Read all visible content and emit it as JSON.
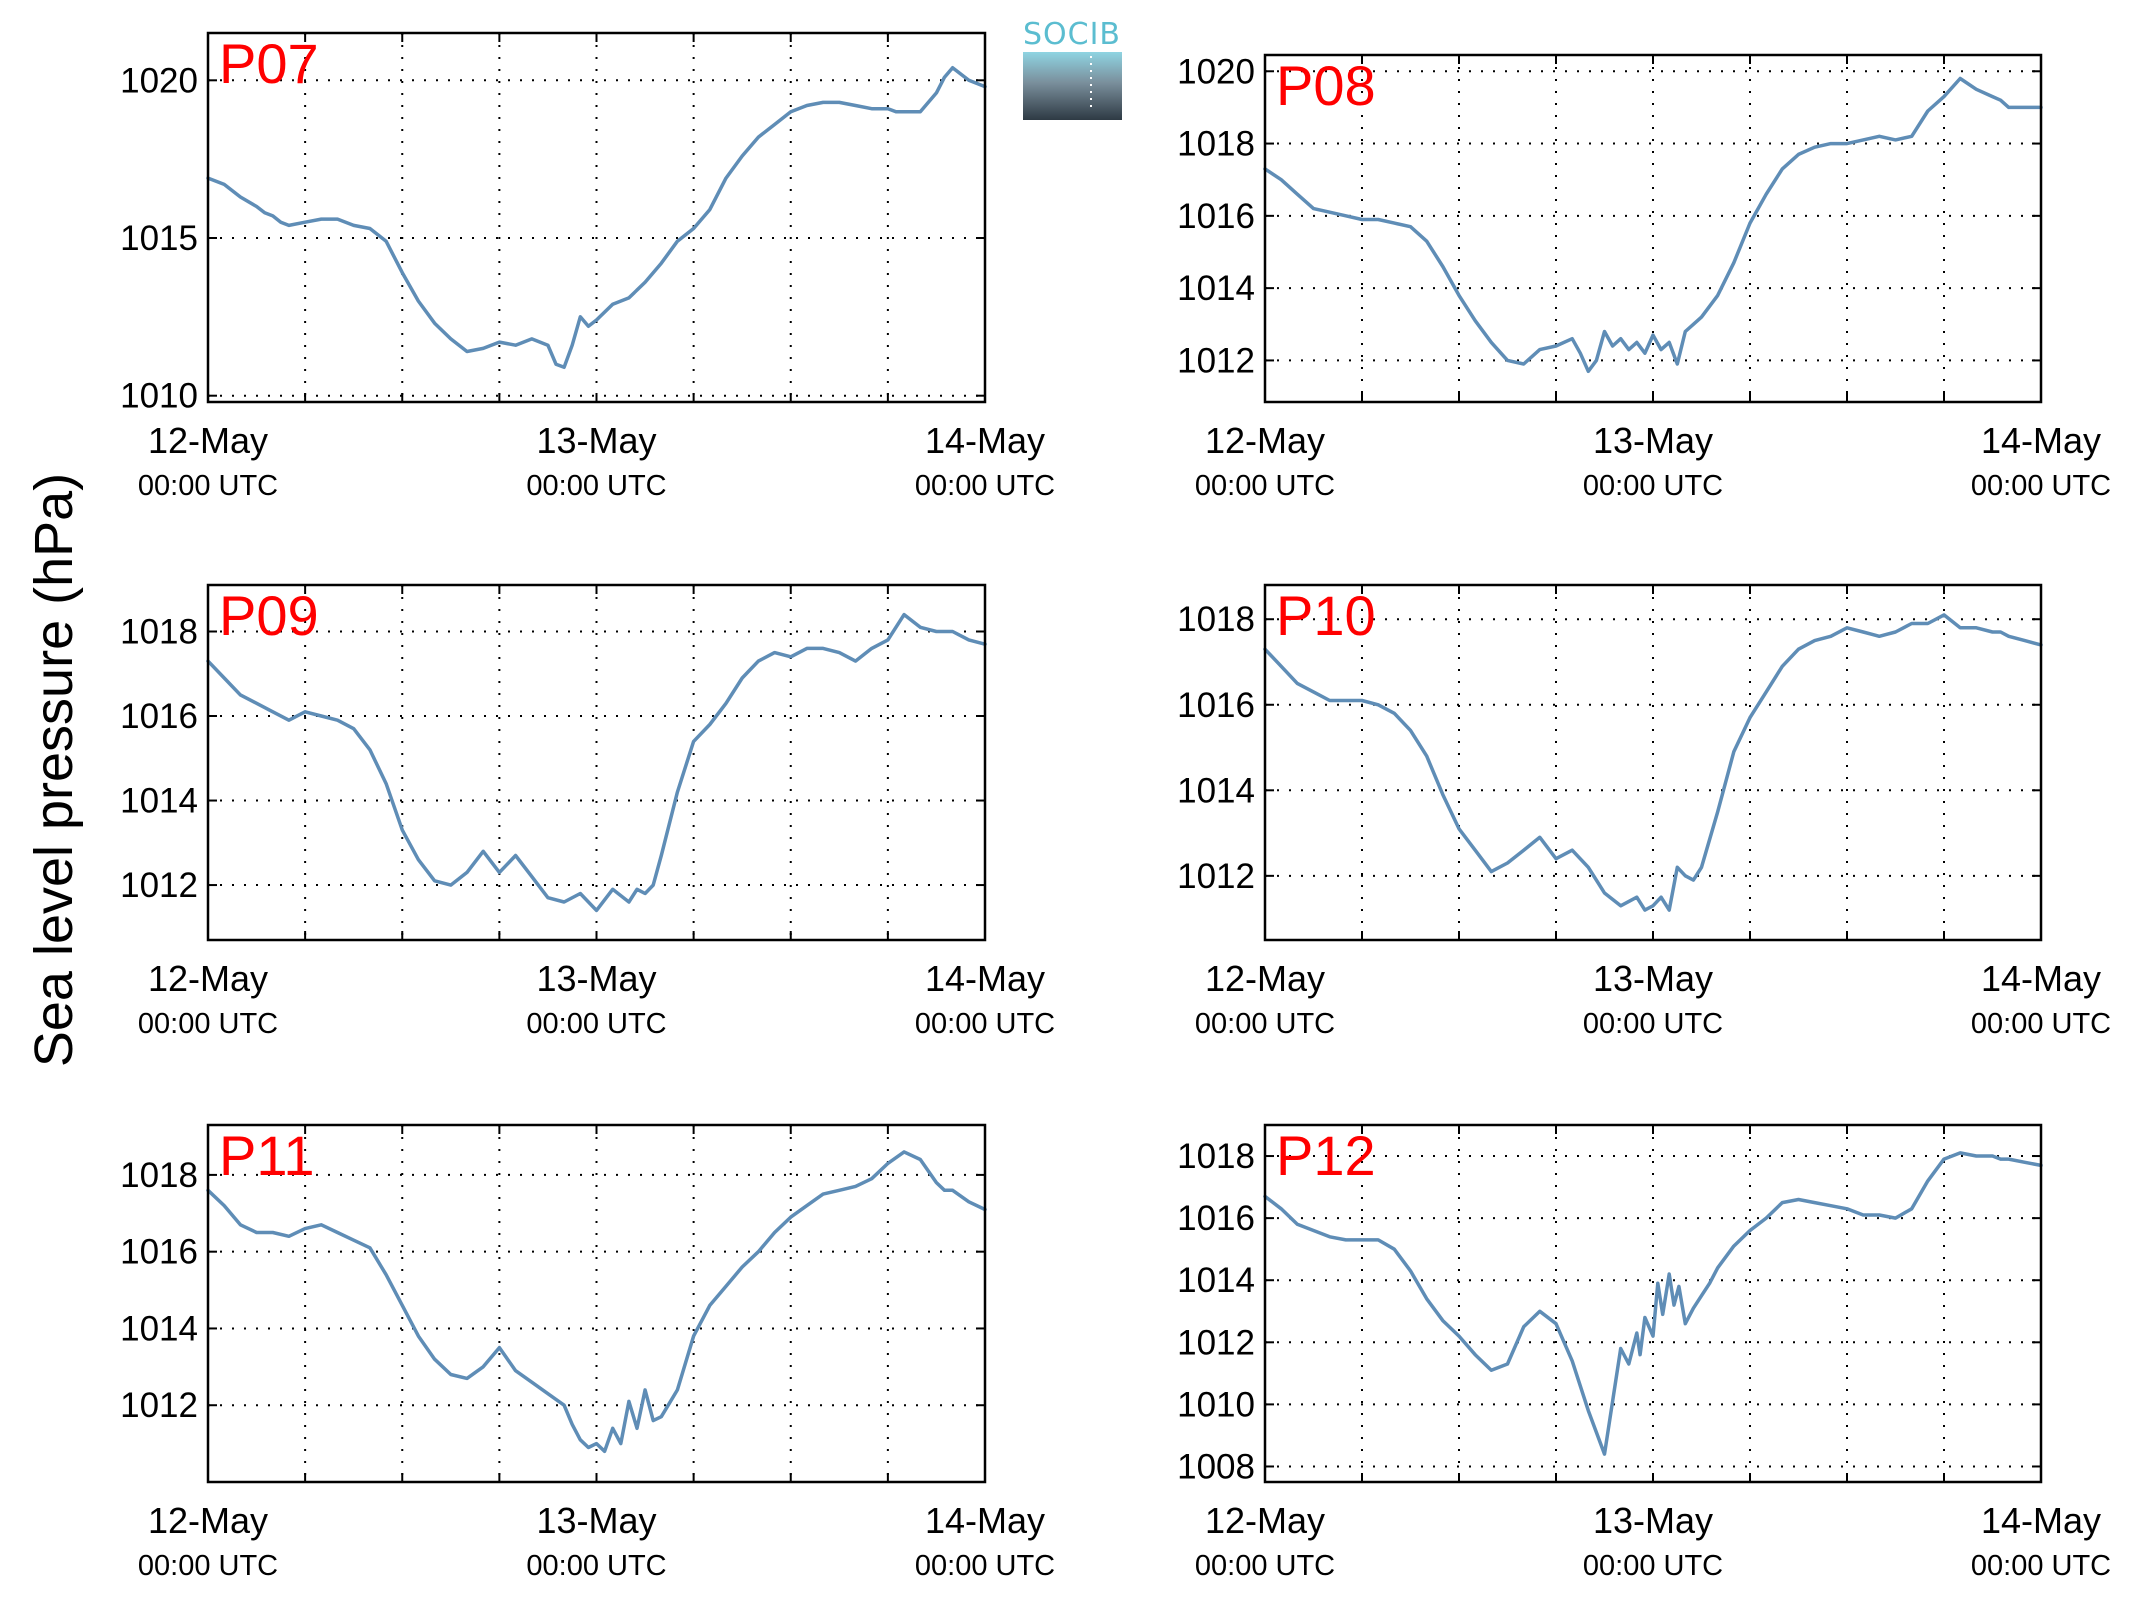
{
  "figure": {
    "ylabel": "Sea level pressure (hPa)",
    "logo_text": "SOCIB",
    "colors": {
      "line": "#5f8db6",
      "panel_label": "#ff0000",
      "axis": "#000000",
      "logo_top": "#5bbdd0",
      "logo_bottom": "#2e3a44"
    }
  },
  "chart_data": [
    {
      "type": "line",
      "label": "P07",
      "x_ticks": [
        "12-May",
        "13-May",
        "14-May"
      ],
      "x_tick_sublabel": "00:00 UTC",
      "x_unit": "hours since 12-May 00:00 UTC",
      "xlim": [
        0,
        48
      ],
      "ylim": [
        1009.8,
        1021.5
      ],
      "yticks": [
        1010,
        1015,
        1020
      ],
      "grid": true,
      "series": [
        {
          "x": [
            0,
            1,
            2,
            3,
            3.5,
            4,
            4.5,
            5,
            6,
            7,
            8,
            9,
            10,
            11,
            12,
            13,
            14,
            15,
            16,
            17,
            17.5,
            18,
            19,
            20,
            21,
            21.5,
            22,
            22.5,
            23,
            23.5,
            24,
            25,
            26,
            27,
            28,
            29,
            30,
            31,
            32,
            33,
            34,
            35,
            36,
            37,
            38,
            39,
            40,
            41,
            42,
            42.5,
            43,
            44,
            45,
            45.5,
            46,
            47,
            48
          ],
          "y": [
            1016.9,
            1016.7,
            1016.3,
            1016.0,
            1015.8,
            1015.7,
            1015.5,
            1015.4,
            1015.5,
            1015.6,
            1015.6,
            1015.4,
            1015.3,
            1014.9,
            1013.9,
            1013.0,
            1012.3,
            1011.8,
            1011.4,
            1011.5,
            1011.6,
            1011.7,
            1011.6,
            1011.8,
            1011.6,
            1011.0,
            1010.9,
            1011.6,
            1012.5,
            1012.2,
            1012.4,
            1012.9,
            1013.1,
            1013.6,
            1014.2,
            1014.9,
            1015.3,
            1015.9,
            1016.9,
            1017.6,
            1018.2,
            1018.6,
            1019.0,
            1019.2,
            1019.3,
            1019.3,
            1019.2,
            1019.1,
            1019.1,
            1019.0,
            1019.0,
            1019.0,
            1019.6,
            1020.1,
            1020.4,
            1020.0,
            1019.8
          ]
        }
      ]
    },
    {
      "type": "line",
      "label": "P08",
      "x_ticks": [
        "12-May",
        "13-May",
        "14-May"
      ],
      "x_tick_sublabel": "00:00 UTC",
      "x_unit": "hours since 12-May 00:00 UTC",
      "xlim": [
        0,
        48
      ],
      "ylim": [
        1010.85,
        1020.45
      ],
      "yticks": [
        1012,
        1014,
        1016,
        1018,
        1020
      ],
      "grid": true,
      "series": [
        {
          "x": [
            0,
            1,
            2,
            3,
            4,
            5,
            6,
            7,
            8,
            9,
            10,
            11,
            12,
            13,
            14,
            15,
            16,
            17,
            18,
            19,
            19.5,
            20,
            20.5,
            21,
            21.5,
            22,
            22.5,
            23,
            23.5,
            24,
            24.5,
            25,
            25.5,
            26,
            26.5,
            27,
            28,
            29,
            30,
            31,
            32,
            33,
            34,
            35,
            36,
            37,
            38,
            39,
            40,
            41,
            42,
            43,
            44,
            45,
            45.5,
            46,
            47,
            48
          ],
          "y": [
            1017.3,
            1017.0,
            1016.6,
            1016.2,
            1016.1,
            1016.0,
            1015.9,
            1015.9,
            1015.8,
            1015.7,
            1015.3,
            1014.6,
            1013.8,
            1013.1,
            1012.5,
            1012.0,
            1011.9,
            1012.3,
            1012.4,
            1012.6,
            1012.2,
            1011.7,
            1012.0,
            1012.8,
            1012.4,
            1012.6,
            1012.3,
            1012.5,
            1012.2,
            1012.7,
            1012.3,
            1012.5,
            1011.9,
            1012.8,
            1013.0,
            1013.2,
            1013.8,
            1014.7,
            1015.8,
            1016.6,
            1017.3,
            1017.7,
            1017.9,
            1018.0,
            1018.0,
            1018.1,
            1018.2,
            1018.1,
            1018.2,
            1018.9,
            1019.3,
            1019.8,
            1019.5,
            1019.3,
            1019.2,
            1019.0,
            1019.0,
            1019.0
          ]
        }
      ]
    },
    {
      "type": "line",
      "label": "P09",
      "x_ticks": [
        "12-May",
        "13-May",
        "14-May"
      ],
      "x_tick_sublabel": "00:00 UTC",
      "x_unit": "hours since 12-May 00:00 UTC",
      "xlim": [
        0,
        48
      ],
      "ylim": [
        1010.7,
        1019.1
      ],
      "yticks": [
        1012,
        1014,
        1016,
        1018
      ],
      "grid": true,
      "series": [
        {
          "x": [
            0,
            1,
            2,
            3,
            4,
            5,
            6,
            7,
            8,
            9,
            10,
            11,
            12,
            13,
            14,
            15,
            16,
            17,
            18,
            19,
            20,
            21,
            22,
            23,
            24,
            25,
            26,
            26.5,
            27,
            27.5,
            28,
            29,
            30,
            31,
            32,
            33,
            34,
            35,
            36,
            37,
            38,
            39,
            40,
            41,
            42,
            43,
            44,
            45,
            45.5,
            46,
            47,
            48
          ],
          "y": [
            1017.3,
            1016.9,
            1016.5,
            1016.3,
            1016.1,
            1015.9,
            1016.1,
            1016.0,
            1015.9,
            1015.7,
            1015.2,
            1014.4,
            1013.3,
            1012.6,
            1012.1,
            1012.0,
            1012.3,
            1012.8,
            1012.3,
            1012.7,
            1012.2,
            1011.7,
            1011.6,
            1011.8,
            1011.4,
            1011.9,
            1011.6,
            1011.9,
            1011.8,
            1012.0,
            1012.7,
            1014.2,
            1015.4,
            1015.8,
            1016.3,
            1016.9,
            1017.3,
            1017.5,
            1017.4,
            1017.6,
            1017.6,
            1017.5,
            1017.3,
            1017.6,
            1017.8,
            1018.4,
            1018.1,
            1018.0,
            1018.0,
            1018.0,
            1017.8,
            1017.7
          ]
        }
      ]
    },
    {
      "type": "line",
      "label": "P10",
      "x_ticks": [
        "12-May",
        "13-May",
        "14-May"
      ],
      "x_tick_sublabel": "00:00 UTC",
      "x_unit": "hours since 12-May 00:00 UTC",
      "xlim": [
        0,
        48
      ],
      "ylim": [
        1010.5,
        1018.8
      ],
      "yticks": [
        1012,
        1014,
        1016,
        1018
      ],
      "grid": true,
      "series": [
        {
          "x": [
            0,
            1,
            2,
            3,
            4,
            5,
            6,
            7,
            8,
            9,
            10,
            11,
            12,
            13,
            14,
            15,
            16,
            17,
            18,
            19,
            20,
            21,
            22,
            23,
            23.5,
            24,
            24.5,
            25,
            25.5,
            26,
            26.5,
            27,
            28,
            29,
            30,
            31,
            32,
            33,
            34,
            35,
            36,
            37,
            38,
            39,
            40,
            41,
            42,
            43,
            44,
            45,
            45.5,
            46,
            47,
            48
          ],
          "y": [
            1017.3,
            1016.9,
            1016.5,
            1016.3,
            1016.1,
            1016.1,
            1016.1,
            1016.0,
            1015.8,
            1015.4,
            1014.8,
            1013.9,
            1013.1,
            1012.6,
            1012.1,
            1012.3,
            1012.6,
            1012.9,
            1012.4,
            1012.6,
            1012.2,
            1011.6,
            1011.3,
            1011.5,
            1011.2,
            1011.3,
            1011.5,
            1011.2,
            1012.2,
            1012.0,
            1011.9,
            1012.2,
            1013.5,
            1014.9,
            1015.7,
            1016.3,
            1016.9,
            1017.3,
            1017.5,
            1017.6,
            1017.8,
            1017.7,
            1017.6,
            1017.7,
            1017.9,
            1017.9,
            1018.1,
            1017.8,
            1017.8,
            1017.7,
            1017.7,
            1017.6,
            1017.5,
            1017.4
          ]
        }
      ]
    },
    {
      "type": "line",
      "label": "P11",
      "x_ticks": [
        "12-May",
        "13-May",
        "14-May"
      ],
      "x_tick_sublabel": "00:00 UTC",
      "x_unit": "hours since 12-May 00:00 UTC",
      "xlim": [
        0,
        48
      ],
      "ylim": [
        1010.0,
        1019.3
      ],
      "yticks": [
        1012,
        1014,
        1016,
        1018
      ],
      "grid": true,
      "series": [
        {
          "x": [
            0,
            1,
            2,
            3,
            4,
            5,
            6,
            7,
            8,
            9,
            10,
            11,
            12,
            13,
            14,
            15,
            16,
            17,
            18,
            19,
            20,
            21,
            22,
            22.5,
            23,
            23.5,
            24,
            24.5,
            25,
            25.5,
            26,
            26.5,
            27,
            27.5,
            28,
            29,
            30,
            31,
            32,
            33,
            34,
            35,
            36,
            37,
            38,
            39,
            40,
            41,
            42,
            43,
            44,
            45,
            45.5,
            46,
            47,
            48
          ],
          "y": [
            1017.6,
            1017.2,
            1016.7,
            1016.5,
            1016.5,
            1016.4,
            1016.6,
            1016.7,
            1016.5,
            1016.3,
            1016.1,
            1015.4,
            1014.6,
            1013.8,
            1013.2,
            1012.8,
            1012.7,
            1013.0,
            1013.5,
            1012.9,
            1012.6,
            1012.3,
            1012.0,
            1011.5,
            1011.1,
            1010.9,
            1011.0,
            1010.8,
            1011.4,
            1011.0,
            1012.1,
            1011.4,
            1012.4,
            1011.6,
            1011.7,
            1012.4,
            1013.8,
            1014.6,
            1015.1,
            1015.6,
            1016.0,
            1016.5,
            1016.9,
            1017.2,
            1017.5,
            1017.6,
            1017.7,
            1017.9,
            1018.3,
            1018.6,
            1018.4,
            1017.8,
            1017.6,
            1017.6,
            1017.3,
            1017.1
          ]
        }
      ]
    },
    {
      "type": "line",
      "label": "P12",
      "x_ticks": [
        "12-May",
        "13-May",
        "14-May"
      ],
      "x_tick_sublabel": "00:00 UTC",
      "x_unit": "hours since 12-May 00:00 UTC",
      "xlim": [
        0,
        48
      ],
      "ylim": [
        1007.5,
        1019.0
      ],
      "yticks": [
        1008,
        1010,
        1012,
        1014,
        1016,
        1018
      ],
      "grid": true,
      "series": [
        {
          "x": [
            0,
            1,
            2,
            3,
            4,
            5,
            6,
            7,
            8,
            9,
            10,
            11,
            12,
            13,
            14,
            15,
            16,
            17,
            18,
            19,
            20,
            21,
            22,
            22.5,
            23,
            23.2,
            23.5,
            24,
            24.3,
            24.6,
            25,
            25.3,
            25.6,
            26,
            26.5,
            27,
            27.5,
            28,
            29,
            30,
            31,
            32,
            33,
            34,
            35,
            36,
            37,
            38,
            39,
            40,
            41,
            42,
            43,
            44,
            45,
            45.5,
            46,
            47,
            48
          ],
          "y": [
            1016.7,
            1016.3,
            1015.8,
            1015.6,
            1015.4,
            1015.3,
            1015.3,
            1015.3,
            1015.0,
            1014.3,
            1013.4,
            1012.7,
            1012.2,
            1011.6,
            1011.1,
            1011.3,
            1012.5,
            1013.0,
            1012.6,
            1011.4,
            1009.8,
            1008.4,
            1011.8,
            1011.3,
            1012.3,
            1011.6,
            1012.8,
            1012.2,
            1013.9,
            1012.9,
            1014.2,
            1013.2,
            1013.8,
            1012.6,
            1013.1,
            1013.5,
            1013.9,
            1014.4,
            1015.1,
            1015.6,
            1016.0,
            1016.5,
            1016.6,
            1016.5,
            1016.4,
            1016.3,
            1016.1,
            1016.1,
            1016.0,
            1016.3,
            1017.2,
            1017.9,
            1018.1,
            1018.0,
            1018.0,
            1017.9,
            1017.9,
            1017.8,
            1017.7
          ]
        }
      ]
    }
  ]
}
